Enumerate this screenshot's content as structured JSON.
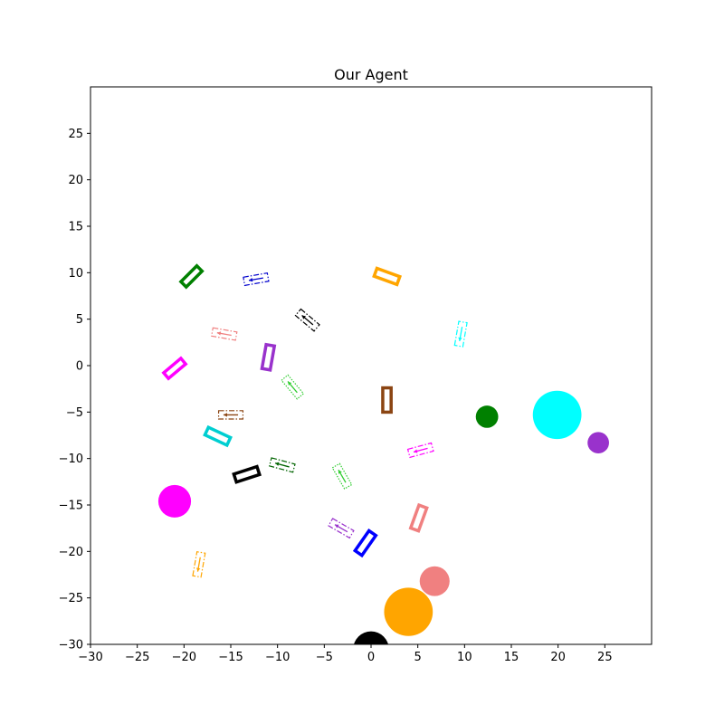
{
  "chart_data": {
    "type": "scatter",
    "title": "Our Agent",
    "xlabel": "",
    "ylabel": "",
    "xlim": [
      -30,
      30
    ],
    "ylim": [
      -30,
      30
    ],
    "xticks": [
      -30,
      -25,
      -20,
      -15,
      -10,
      -5,
      0,
      5,
      10,
      15,
      20,
      25
    ],
    "yticks": [
      -30,
      -25,
      -20,
      -15,
      -10,
      -5,
      0,
      5,
      10,
      15,
      20,
      25
    ],
    "grid": false,
    "legend": "none",
    "circles": [
      {
        "x": 0.0,
        "y": -30.5,
        "r": 1.9,
        "color": "#000000"
      },
      {
        "x": 4.0,
        "y": -26.5,
        "r": 2.6,
        "color": "#ffa500"
      },
      {
        "x": 6.8,
        "y": -23.2,
        "r": 1.6,
        "color": "#f08080"
      },
      {
        "x": -21.0,
        "y": -14.6,
        "r": 1.75,
        "color": "#ff00ff"
      },
      {
        "x": 12.4,
        "y": -5.5,
        "r": 1.2,
        "color": "#008000"
      },
      {
        "x": 19.9,
        "y": -5.3,
        "r": 2.6,
        "color": "#00ffff"
      },
      {
        "x": 24.3,
        "y": -8.3,
        "r": 1.15,
        "color": "#9932cc"
      }
    ],
    "rectangles": [
      {
        "x": -19.2,
        "y": 9.6,
        "length": 2.4,
        "width": 0.8,
        "angle": 45,
        "color": "#008000",
        "style": "solid"
      },
      {
        "x": -12.3,
        "y": 9.3,
        "length": 2.6,
        "width": 0.9,
        "angle": 10,
        "color": "#0000cd",
        "style": "dashdot"
      },
      {
        "x": 1.7,
        "y": 9.6,
        "length": 2.6,
        "width": 0.9,
        "angle": -20,
        "color": "#ffa500",
        "style": "solid"
      },
      {
        "x": -6.8,
        "y": 4.9,
        "length": 2.6,
        "width": 0.9,
        "angle": -40,
        "color": "#000000",
        "style": "dashdot"
      },
      {
        "x": -15.7,
        "y": 3.4,
        "length": 2.6,
        "width": 0.9,
        "angle": -10,
        "color": "#f08080",
        "style": "dashdot"
      },
      {
        "x": 9.6,
        "y": 3.4,
        "length": 2.6,
        "width": 0.9,
        "angle": 80,
        "color": "#00ffff",
        "style": "dashdot"
      },
      {
        "x": -11.0,
        "y": 0.9,
        "length": 2.6,
        "width": 0.9,
        "angle": 80,
        "color": "#9932cc",
        "style": "solid"
      },
      {
        "x": -21.0,
        "y": -0.3,
        "length": 2.4,
        "width": 0.8,
        "angle": 40,
        "color": "#ff00ff",
        "style": "solid"
      },
      {
        "x": -8.4,
        "y": -2.3,
        "length": 2.6,
        "width": 0.9,
        "angle": -50,
        "color": "#32cd32",
        "style": "dotted"
      },
      {
        "x": 1.7,
        "y": -3.7,
        "length": 2.6,
        "width": 0.9,
        "angle": 90,
        "color": "#8b4513",
        "style": "solid"
      },
      {
        "x": -15.0,
        "y": -5.3,
        "length": 2.6,
        "width": 0.9,
        "angle": 0,
        "color": "#8b4513",
        "style": "dashdot"
      },
      {
        "x": -16.4,
        "y": -7.6,
        "length": 2.6,
        "width": 0.9,
        "angle": -25,
        "color": "#00ced1",
        "style": "solid"
      },
      {
        "x": 5.3,
        "y": -9.1,
        "length": 2.6,
        "width": 0.9,
        "angle": 15,
        "color": "#ff00ff",
        "style": "dashdot"
      },
      {
        "x": -9.5,
        "y": -10.7,
        "length": 2.6,
        "width": 0.9,
        "angle": -15,
        "color": "#006400",
        "style": "dashdot"
      },
      {
        "x": -13.3,
        "y": -11.7,
        "length": 2.6,
        "width": 0.9,
        "angle": 18,
        "color": "#000000",
        "style": "solid"
      },
      {
        "x": -3.1,
        "y": -11.9,
        "length": 2.6,
        "width": 0.9,
        "angle": -60,
        "color": "#32cd32",
        "style": "dotted"
      },
      {
        "x": -3.2,
        "y": -17.5,
        "length": 2.6,
        "width": 0.9,
        "angle": -30,
        "color": "#9932cc",
        "style": "dashdot"
      },
      {
        "x": 5.1,
        "y": -16.4,
        "length": 2.6,
        "width": 0.9,
        "angle": 70,
        "color": "#f08080",
        "style": "solid"
      },
      {
        "x": -0.6,
        "y": -19.1,
        "length": 2.6,
        "width": 0.9,
        "angle": 55,
        "color": "#0000ff",
        "style": "solid"
      },
      {
        "x": -18.4,
        "y": -21.4,
        "length": 2.6,
        "width": 0.9,
        "angle": 80,
        "color": "#ffa500",
        "style": "dashdot"
      }
    ]
  }
}
